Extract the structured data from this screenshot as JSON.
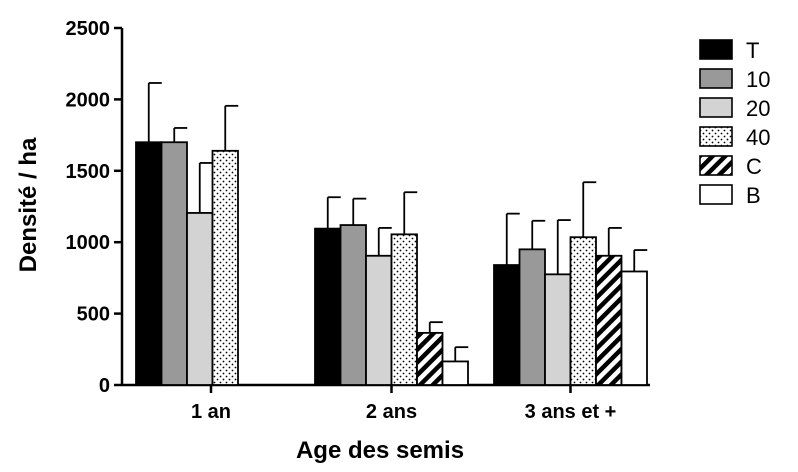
{
  "chart_data": {
    "type": "bar",
    "title": "",
    "xlabel": "Age des semis",
    "ylabel": "Densité / ha",
    "ylim": [
      0,
      2500
    ],
    "yticks": [
      0,
      500,
      1000,
      1500,
      2000,
      2500
    ],
    "grid": false,
    "legend_position": "right",
    "error_bars": true,
    "categories": [
      "1 an",
      "2 ans",
      "3 ans et +"
    ],
    "series": [
      {
        "name": "T",
        "fill": "solid-black",
        "values": [
          1700,
          1095,
          840
        ],
        "errors": [
          415,
          220,
          360
        ]
      },
      {
        "name": "10",
        "fill": "dark-gray",
        "values": [
          1700,
          1120,
          950
        ],
        "errors": [
          100,
          185,
          200
        ]
      },
      {
        "name": "20",
        "fill": "light-gray",
        "values": [
          1205,
          905,
          775
        ],
        "errors": [
          350,
          195,
          380
        ]
      },
      {
        "name": "40",
        "fill": "dotted",
        "values": [
          1640,
          1055,
          1035
        ],
        "errors": [
          315,
          295,
          385
        ]
      },
      {
        "name": "C",
        "fill": "diagonal-hatch",
        "values": [
          null,
          365,
          905
        ],
        "errors": [
          null,
          75,
          195
        ]
      },
      {
        "name": "B",
        "fill": "white",
        "values": [
          null,
          165,
          795
        ],
        "errors": [
          null,
          100,
          150
        ]
      }
    ],
    "colors": {
      "T": "#000000",
      "10": "#999999",
      "20": "#d3d3d3",
      "40": "#ffffff",
      "C": "#ffffff",
      "B": "#ffffff"
    }
  }
}
